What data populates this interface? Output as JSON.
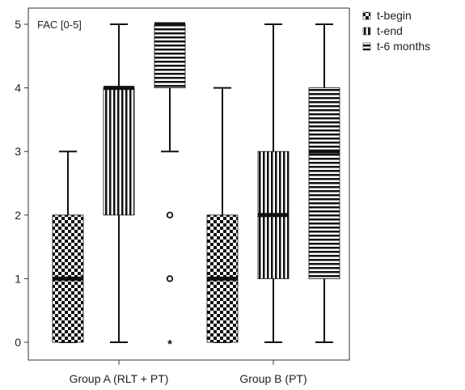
{
  "chart_data": {
    "type": "boxplot",
    "inner_label": "FAC [0-5]",
    "ylim": [
      0,
      5
    ],
    "yticks": [
      "0",
      "1",
      "2",
      "3",
      "4",
      "5"
    ],
    "grid": false,
    "legend_position": "outside-top-right",
    "categories": [
      "Group A (RLT + PT)",
      "Group B  (PT)"
    ],
    "series": [
      {
        "name": "t-begin",
        "pattern": "checker",
        "boxes": [
          {
            "min": 0,
            "q1": 0,
            "median": 1,
            "q3": 2,
            "max": 3,
            "outliers": [],
            "extremes": []
          },
          {
            "min": 0,
            "q1": 0,
            "median": 1,
            "q3": 2,
            "max": 4,
            "outliers": [],
            "extremes": []
          }
        ]
      },
      {
        "name": "t-end",
        "pattern": "vertical",
        "boxes": [
          {
            "min": 0,
            "q1": 2,
            "median": 4,
            "q3": 4,
            "max": 5,
            "outliers": [],
            "extremes": []
          },
          {
            "min": 0,
            "q1": 1,
            "median": 2,
            "q3": 3,
            "max": 5,
            "outliers": [],
            "extremes": []
          }
        ]
      },
      {
        "name": "t-6 months",
        "pattern": "horizontal",
        "boxes": [
          {
            "min": 3,
            "q1": 4,
            "median": 5,
            "q3": 5,
            "max": 5,
            "outliers": [
              2,
              1
            ],
            "extremes": [
              0
            ]
          },
          {
            "min": 0,
            "q1": 1,
            "median": 3,
            "q3": 4,
            "max": 5,
            "outliers": [],
            "extremes": []
          }
        ]
      }
    ],
    "colors": {
      "ink": "#111111",
      "axis": "#333333",
      "background": "#ffffff"
    }
  }
}
